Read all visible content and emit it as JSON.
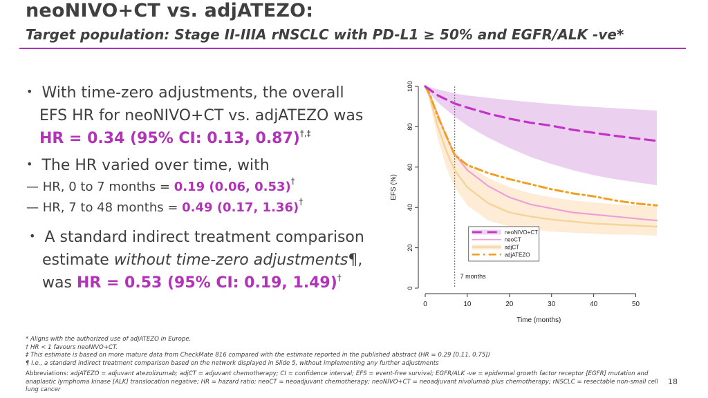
{
  "title": "neoNIVO+CT vs. adjATEZO:",
  "subtitle": "Target population: Stage II-IIIA rNSCLC with PD-L1 ≥ 50% and EGFR/ALK -ve*",
  "bullets": {
    "b1": {
      "line1": "With time-zero adjustments, the overall",
      "line2": "EFS HR for neoNIVO+CT vs. adjATEZO was",
      "hr": "HR = 0.34 (95% CI: 0.13, 0.87)",
      "sup": "†,‡"
    },
    "b2": {
      "line1": "The HR varied over time, with",
      "sub1_label": "HR, 0 to 7 months = ",
      "sub1_value": "0.19 (0.06, 0.53)",
      "sub1_sup": "†",
      "sub2_label": "HR, 7 to 48 months = ",
      "sub2_value": "0.49 (0.17, 1.36)",
      "sub2_sup": "†"
    },
    "b3": {
      "line1": "A standard indirect treatment comparison",
      "line2_plain": "estimate ",
      "line2_italic": "without time-zero adjustments",
      "line2_end": "¶,",
      "line3_plain": "was ",
      "hr": "HR = 0.53 (95% CI: 0.19, 1.49)",
      "sup": "†"
    }
  },
  "footnotes": [
    "* Aligns with the authorized use of adjATEZO in Europe.",
    "† HR < 1 favours neoNIVO+CT.",
    "‡ This estimate is based on more mature data from CheckMate 816 compared with the estimate reported in the published abstract (HR = 0.29 [0.11, 0.75])",
    "¶ I.e., a standard indirect treatment comparison based on the network displayed in Slide 5, without implementing any further adjustments"
  ],
  "abbreviations": {
    "label": "Abbreviations:",
    "text": " adjATEZO = adjuvant atezolizumab; adjCT = adjuvant chemotherapy; CI = confidence interval; EFS = event-free survival; EGFR/ALK -ve = epidermal growth factor receptor [EGFR] mutation and anaplastic lymphoma kinase [ALK] translocation negative; HR = hazard ratio; neoCT = neoadjuvant chemotherapy; neoNIVO+CT = neoadjuvant nivolumab plus chemotherapy; rNSCLC = resectable non-small cell lung cancer"
  },
  "page_number": "18",
  "colors": {
    "accent": "#b133b8",
    "neonivo": "#c233c8",
    "neonivo_band": "#e9c8ec",
    "neoct": "#ef9fd7",
    "adjct": "#f3d49a",
    "adjct_band": "#fde6c8",
    "adjatezo": "#f0a020"
  },
  "chart_data": {
    "type": "line",
    "xlabel": "Time (months)",
    "ylabel": "EFS (%)",
    "xlim": [
      0,
      55
    ],
    "ylim": [
      0,
      100
    ],
    "xticks": [
      0,
      10,
      20,
      30,
      40,
      50
    ],
    "yticks": [
      0,
      20,
      40,
      60,
      80,
      100
    ],
    "annotation": {
      "x": 7,
      "label": "7 months"
    },
    "legend_position": "bottom-right",
    "series": [
      {
        "name": "neoNIVO+CT",
        "style": "dashed",
        "x": [
          0,
          1,
          3,
          5,
          7,
          10,
          15,
          20,
          25,
          30,
          35,
          40,
          45,
          50,
          55
        ],
        "y": [
          100,
          98.5,
          95.5,
          93.5,
          91.5,
          89.5,
          86.5,
          84,
          82,
          80.5,
          78.5,
          77,
          75.5,
          74.2,
          73
        ],
        "band_upper": [
          100,
          99.7,
          98.5,
          97.5,
          96.5,
          95.5,
          94.3,
          93.2,
          92.2,
          91.3,
          90.5,
          89.8,
          89.2,
          88.6,
          88
        ],
        "band_lower": [
          100,
          97,
          92,
          88.5,
          85,
          80.5,
          74.5,
          69.5,
          65,
          61.5,
          58.5,
          56,
          54,
          52.5,
          51
        ]
      },
      {
        "name": "neoCT",
        "style": "solid",
        "x": [
          0,
          1,
          3,
          5,
          7,
          10,
          15,
          20,
          25,
          30,
          35,
          40,
          45,
          50,
          55
        ],
        "y": [
          100,
          96,
          86,
          75,
          66.5,
          58.5,
          50.5,
          45,
          41.5,
          39.5,
          37.5,
          36.5,
          35.5,
          34.5,
          33.5
        ]
      },
      {
        "name": "adjCT",
        "style": "solid",
        "x": [
          0,
          1,
          3,
          5,
          7,
          10,
          15,
          20,
          25,
          30,
          35,
          40,
          45,
          50,
          55
        ],
        "y": [
          100,
          95,
          80,
          68,
          58.5,
          50,
          42,
          37.5,
          35.5,
          34,
          33,
          32,
          31.5,
          31,
          30.5
        ],
        "band_upper": [
          100,
          97,
          86,
          76,
          67.5,
          61,
          54.5,
          50,
          47,
          45,
          43.5,
          42.5,
          41.5,
          41,
          40.5
        ],
        "band_lower": [
          100,
          93,
          74,
          60,
          50,
          41,
          33.5,
          30.5,
          29,
          28,
          27.5,
          27,
          26.5,
          26.5,
          26
        ]
      },
      {
        "name": "adjATEZO",
        "style": "dashdot",
        "x": [
          0,
          1,
          3,
          5,
          7,
          10,
          15,
          20,
          25,
          30,
          35,
          40,
          45,
          50,
          55
        ],
        "y": [
          100,
          96.5,
          85,
          75.5,
          66,
          61,
          57,
          54,
          51.5,
          49,
          47,
          45.5,
          43.5,
          42,
          41
        ]
      }
    ]
  }
}
